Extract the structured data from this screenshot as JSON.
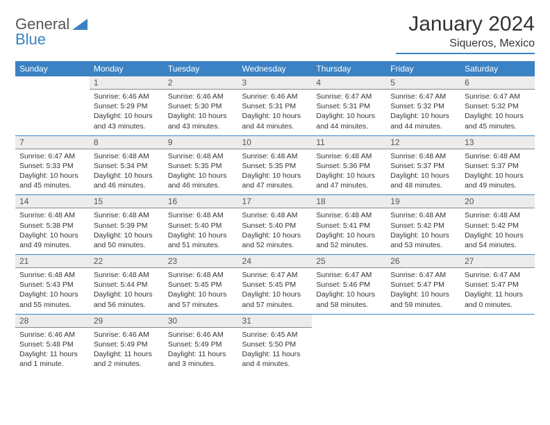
{
  "logo": {
    "text_general": "General",
    "text_blue": "Blue"
  },
  "header": {
    "month_title": "January 2024",
    "location": "Siqueros, Mexico"
  },
  "day_names": [
    "Sunday",
    "Monday",
    "Tuesday",
    "Wednesday",
    "Thursday",
    "Friday",
    "Saturday"
  ],
  "colors": {
    "accent": "#3b82c4",
    "header_bg": "#3b82c4",
    "header_text": "#ffffff",
    "daynum_bg": "#ececec",
    "text": "#333333"
  },
  "grid": {
    "first_weekday_offset": 1,
    "days_in_month": 31
  },
  "days": {
    "1": {
      "sunrise": "Sunrise: 6:46 AM",
      "sunset": "Sunset: 5:29 PM",
      "daylight": "Daylight: 10 hours and 43 minutes."
    },
    "2": {
      "sunrise": "Sunrise: 6:46 AM",
      "sunset": "Sunset: 5:30 PM",
      "daylight": "Daylight: 10 hours and 43 minutes."
    },
    "3": {
      "sunrise": "Sunrise: 6:46 AM",
      "sunset": "Sunset: 5:31 PM",
      "daylight": "Daylight: 10 hours and 44 minutes."
    },
    "4": {
      "sunrise": "Sunrise: 6:47 AM",
      "sunset": "Sunset: 5:31 PM",
      "daylight": "Daylight: 10 hours and 44 minutes."
    },
    "5": {
      "sunrise": "Sunrise: 6:47 AM",
      "sunset": "Sunset: 5:32 PM",
      "daylight": "Daylight: 10 hours and 44 minutes."
    },
    "6": {
      "sunrise": "Sunrise: 6:47 AM",
      "sunset": "Sunset: 5:32 PM",
      "daylight": "Daylight: 10 hours and 45 minutes."
    },
    "7": {
      "sunrise": "Sunrise: 6:47 AM",
      "sunset": "Sunset: 5:33 PM",
      "daylight": "Daylight: 10 hours and 45 minutes."
    },
    "8": {
      "sunrise": "Sunrise: 6:48 AM",
      "sunset": "Sunset: 5:34 PM",
      "daylight": "Daylight: 10 hours and 46 minutes."
    },
    "9": {
      "sunrise": "Sunrise: 6:48 AM",
      "sunset": "Sunset: 5:35 PM",
      "daylight": "Daylight: 10 hours and 46 minutes."
    },
    "10": {
      "sunrise": "Sunrise: 6:48 AM",
      "sunset": "Sunset: 5:35 PM",
      "daylight": "Daylight: 10 hours and 47 minutes."
    },
    "11": {
      "sunrise": "Sunrise: 6:48 AM",
      "sunset": "Sunset: 5:36 PM",
      "daylight": "Daylight: 10 hours and 47 minutes."
    },
    "12": {
      "sunrise": "Sunrise: 6:48 AM",
      "sunset": "Sunset: 5:37 PM",
      "daylight": "Daylight: 10 hours and 48 minutes."
    },
    "13": {
      "sunrise": "Sunrise: 6:48 AM",
      "sunset": "Sunset: 5:37 PM",
      "daylight": "Daylight: 10 hours and 49 minutes."
    },
    "14": {
      "sunrise": "Sunrise: 6:48 AM",
      "sunset": "Sunset: 5:38 PM",
      "daylight": "Daylight: 10 hours and 49 minutes."
    },
    "15": {
      "sunrise": "Sunrise: 6:48 AM",
      "sunset": "Sunset: 5:39 PM",
      "daylight": "Daylight: 10 hours and 50 minutes."
    },
    "16": {
      "sunrise": "Sunrise: 6:48 AM",
      "sunset": "Sunset: 5:40 PM",
      "daylight": "Daylight: 10 hours and 51 minutes."
    },
    "17": {
      "sunrise": "Sunrise: 6:48 AM",
      "sunset": "Sunset: 5:40 PM",
      "daylight": "Daylight: 10 hours and 52 minutes."
    },
    "18": {
      "sunrise": "Sunrise: 6:48 AM",
      "sunset": "Sunset: 5:41 PM",
      "daylight": "Daylight: 10 hours and 52 minutes."
    },
    "19": {
      "sunrise": "Sunrise: 6:48 AM",
      "sunset": "Sunset: 5:42 PM",
      "daylight": "Daylight: 10 hours and 53 minutes."
    },
    "20": {
      "sunrise": "Sunrise: 6:48 AM",
      "sunset": "Sunset: 5:42 PM",
      "daylight": "Daylight: 10 hours and 54 minutes."
    },
    "21": {
      "sunrise": "Sunrise: 6:48 AM",
      "sunset": "Sunset: 5:43 PM",
      "daylight": "Daylight: 10 hours and 55 minutes."
    },
    "22": {
      "sunrise": "Sunrise: 6:48 AM",
      "sunset": "Sunset: 5:44 PM",
      "daylight": "Daylight: 10 hours and 56 minutes."
    },
    "23": {
      "sunrise": "Sunrise: 6:48 AM",
      "sunset": "Sunset: 5:45 PM",
      "daylight": "Daylight: 10 hours and 57 minutes."
    },
    "24": {
      "sunrise": "Sunrise: 6:47 AM",
      "sunset": "Sunset: 5:45 PM",
      "daylight": "Daylight: 10 hours and 57 minutes."
    },
    "25": {
      "sunrise": "Sunrise: 6:47 AM",
      "sunset": "Sunset: 5:46 PM",
      "daylight": "Daylight: 10 hours and 58 minutes."
    },
    "26": {
      "sunrise": "Sunrise: 6:47 AM",
      "sunset": "Sunset: 5:47 PM",
      "daylight": "Daylight: 10 hours and 59 minutes."
    },
    "27": {
      "sunrise": "Sunrise: 6:47 AM",
      "sunset": "Sunset: 5:47 PM",
      "daylight": "Daylight: 11 hours and 0 minutes."
    },
    "28": {
      "sunrise": "Sunrise: 6:46 AM",
      "sunset": "Sunset: 5:48 PM",
      "daylight": "Daylight: 11 hours and 1 minute."
    },
    "29": {
      "sunrise": "Sunrise: 6:46 AM",
      "sunset": "Sunset: 5:49 PM",
      "daylight": "Daylight: 11 hours and 2 minutes."
    },
    "30": {
      "sunrise": "Sunrise: 6:46 AM",
      "sunset": "Sunset: 5:49 PM",
      "daylight": "Daylight: 11 hours and 3 minutes."
    },
    "31": {
      "sunrise": "Sunrise: 6:45 AM",
      "sunset": "Sunset: 5:50 PM",
      "daylight": "Daylight: 11 hours and 4 minutes."
    }
  }
}
